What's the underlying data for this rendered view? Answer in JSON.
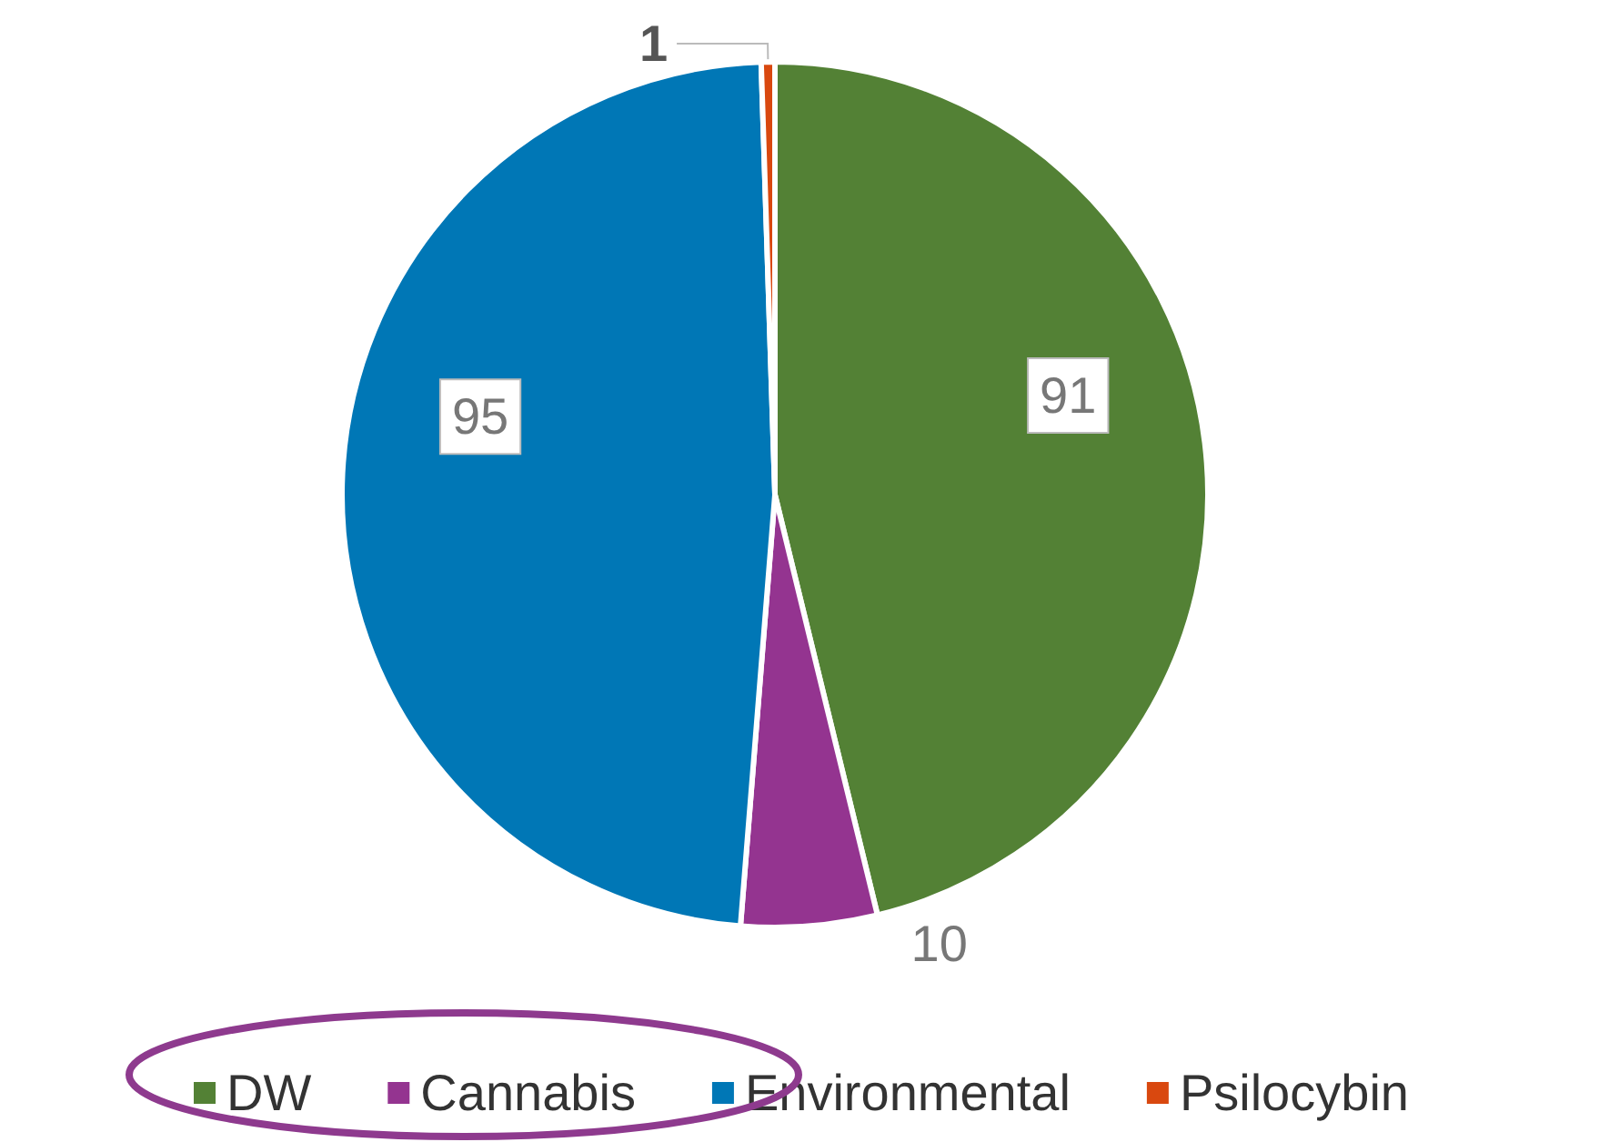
{
  "chart_data": {
    "type": "pie",
    "categories": [
      "DW",
      "Cannabis",
      "Environmental",
      "Psilocybin"
    ],
    "values": [
      91,
      10,
      95,
      1
    ],
    "colors": [
      "#538135",
      "#943490",
      "#0077b6",
      "#d9480f"
    ],
    "data_labels": true,
    "legend": "bottom"
  }
}
